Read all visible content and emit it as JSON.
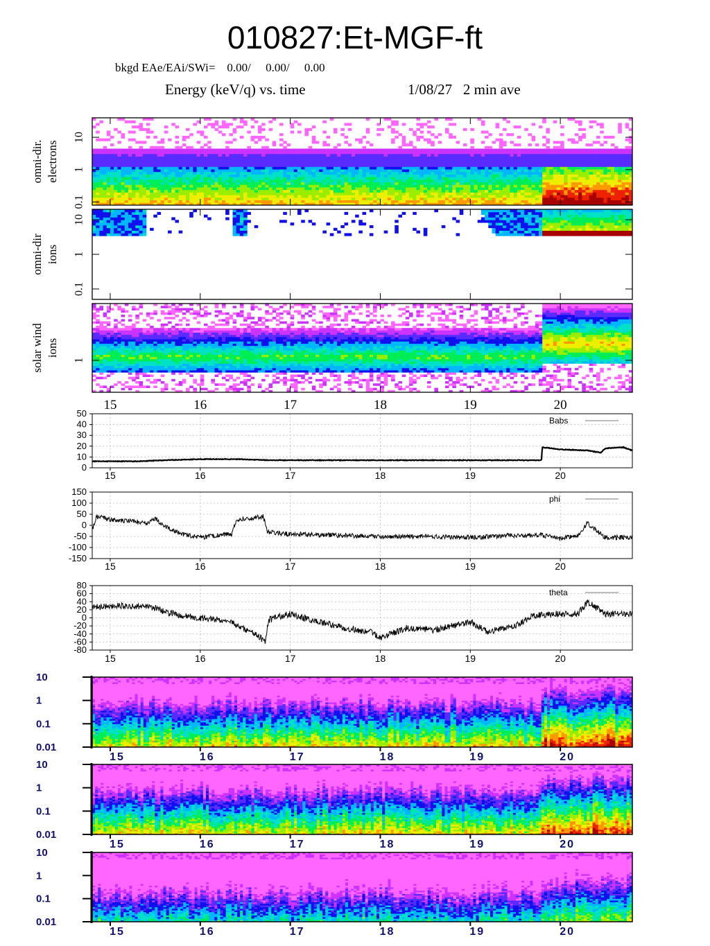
{
  "page_title": "010827:Et-MGF-ft",
  "header": {
    "background_line": "bkgd EAe/EAi/SWi=    0.00/     0.00/     0.00",
    "chart_title": "Energy (keV/q) vs. time",
    "date_label": "1/08/27   2 min ave"
  },
  "chart_data": [
    {
      "type": "heatmap",
      "ylabel": "omni-dir. electrons",
      "yscale": "log",
      "ylim": [
        0.08,
        40
      ],
      "yticks": [
        "0.1",
        "1",
        "10"
      ],
      "xlim": [
        14.8,
        20.8
      ],
      "xticks": [
        "15",
        "16",
        "17",
        "18",
        "19",
        "20"
      ],
      "colors": [
        "#ff55ff",
        "#2020ff",
        "#00ccff",
        "#00ee66",
        "#ccee00",
        "#ff9900",
        "#ee2200",
        "#aa0000"
      ],
      "description_levels": {
        "before_19.8": "high-mid",
        "after_19.8": "high"
      }
    },
    {
      "type": "heatmap",
      "ylabel": "omni-dir ions",
      "yscale": "log",
      "ylim": [
        0.05,
        20
      ],
      "yticks": [
        "0.1",
        "1",
        "10"
      ],
      "xlim": [
        14.8,
        20.8
      ],
      "xticks": [
        "15",
        "16",
        "17",
        "18",
        "19",
        "20"
      ]
    },
    {
      "type": "heatmap",
      "ylabel": "solar wind ions",
      "yscale": "log",
      "yticks": [
        "1"
      ],
      "xlim": [
        14.8,
        20.8
      ],
      "xticks": [
        "15",
        "16",
        "17",
        "18",
        "19",
        "20"
      ]
    },
    {
      "type": "line",
      "series": [
        {
          "name": "Babs",
          "x": [
            14.8,
            15.0,
            15.3,
            15.6,
            16.0,
            16.4,
            16.8,
            17.0,
            17.5,
            18.0,
            18.5,
            19.0,
            19.5,
            19.79,
            19.8,
            20.0,
            20.3,
            20.45,
            20.5,
            20.7,
            20.8
          ],
          "y": [
            6,
            6,
            6,
            7,
            8,
            8,
            7,
            7,
            7,
            7,
            7,
            7,
            7,
            7,
            19,
            17,
            16,
            14,
            18,
            19,
            16
          ]
        }
      ],
      "ylim": [
        0,
        50
      ],
      "yticks": [
        "0",
        "10",
        "20",
        "30",
        "40",
        "50"
      ],
      "xlim": [
        14.8,
        20.8
      ],
      "xticks": [
        "15",
        "16",
        "17",
        "18",
        "19",
        "20"
      ]
    },
    {
      "type": "line",
      "series": [
        {
          "name": "phi",
          "x": [
            14.8,
            14.85,
            15.0,
            15.2,
            15.4,
            15.5,
            15.6,
            15.8,
            16.0,
            16.2,
            16.35,
            16.4,
            16.5,
            16.7,
            16.75,
            17.0,
            17.5,
            18.0,
            18.5,
            19.0,
            19.5,
            19.8,
            20.0,
            20.2,
            20.3,
            20.5,
            20.8
          ],
          "y": [
            -20,
            40,
            25,
            20,
            10,
            30,
            -5,
            -40,
            -55,
            -45,
            -40,
            20,
            30,
            40,
            -30,
            -40,
            -45,
            -50,
            -50,
            -55,
            -45,
            -45,
            -60,
            -45,
            10,
            -55,
            -55
          ]
        }
      ],
      "ylim": [
        -150,
        150
      ],
      "yticks": [
        "-150",
        "-100",
        "-50",
        "0",
        "50",
        "100",
        "150"
      ],
      "xlim": [
        14.8,
        20.8
      ],
      "xticks": [
        "15",
        "16",
        "17",
        "18",
        "19",
        "20"
      ]
    },
    {
      "type": "line",
      "series": [
        {
          "name": "theta",
          "x": [
            14.8,
            15.0,
            15.3,
            15.5,
            15.6,
            15.8,
            16.0,
            16.2,
            16.35,
            16.5,
            16.65,
            16.72,
            16.76,
            17.0,
            17.3,
            17.6,
            17.9,
            18.0,
            18.3,
            18.6,
            19.0,
            19.2,
            19.5,
            19.7,
            19.9,
            20.2,
            20.3,
            20.5,
            20.8
          ],
          "y": [
            25,
            30,
            30,
            25,
            15,
            5,
            0,
            -5,
            -10,
            -30,
            -45,
            -60,
            -5,
            10,
            -10,
            -25,
            -35,
            -50,
            -25,
            -30,
            -10,
            -35,
            -20,
            5,
            10,
            10,
            40,
            10,
            10
          ]
        }
      ],
      "ylim": [
        -80,
        80
      ],
      "yticks": [
        "-80",
        "-60",
        "-40",
        "-20",
        "0",
        "20",
        "40",
        "60",
        "80"
      ],
      "xlim": [
        14.8,
        20.8
      ],
      "xticks": [
        "15",
        "16",
        "17",
        "18",
        "19",
        "20"
      ]
    },
    {
      "type": "heatmap",
      "yscale": "log",
      "ylim": [
        0.01,
        10
      ],
      "yticks": [
        "0.01",
        "0.1",
        "1",
        "10"
      ],
      "xlim": [
        14.8,
        20.8
      ],
      "xticks": [
        "15",
        "16",
        "17",
        "18",
        "19",
        "20"
      ]
    },
    {
      "type": "heatmap",
      "yscale": "log",
      "ylim": [
        0.01,
        10
      ],
      "yticks": [
        "0.01",
        "0.1",
        "1",
        "10"
      ],
      "xlim": [
        14.8,
        20.8
      ],
      "xticks": [
        "15",
        "16",
        "17",
        "18",
        "19",
        "20"
      ]
    },
    {
      "type": "heatmap",
      "yscale": "log",
      "ylim": [
        0.01,
        10
      ],
      "yticks": [
        "0.01",
        "0.1",
        "1",
        "10"
      ],
      "xlim": [
        14.8,
        20.8
      ],
      "xticks": [
        "15",
        "16",
        "17",
        "18",
        "19",
        "20"
      ]
    }
  ]
}
